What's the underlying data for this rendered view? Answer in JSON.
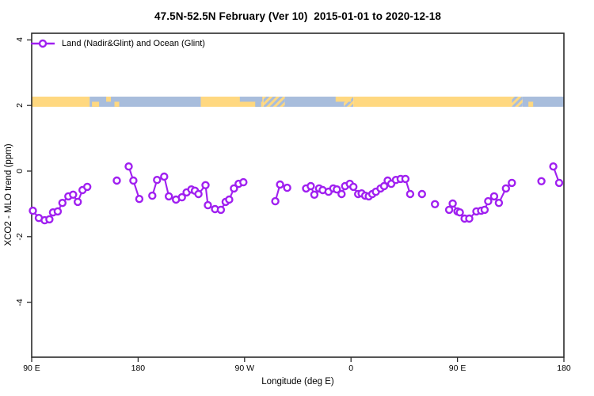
{
  "colors": {
    "series": "#A020F0",
    "land": "#FFD880",
    "ocean": "#A8BDDC",
    "frame": "#2B2B2B",
    "text": "#000000",
    "marker_fill": "#FFFFFF"
  },
  "chart_data": {
    "type": "scatter",
    "title": "47.5N-52.5N February (Ver 10)  2015-01-01 to 2020-12-18",
    "xlabel": "Longitude (deg E)",
    "ylabel": "XCO2 - MLO trend (ppm)",
    "xlim": [
      90,
      540
    ],
    "ylim": [
      -5.7,
      4.25
    ],
    "grid": false,
    "legend_position": "top-left",
    "x_ticks": [
      {
        "value": 90,
        "label": "90 E"
      },
      {
        "value": 180,
        "label": "180"
      },
      {
        "value": 270,
        "label": "90 W"
      },
      {
        "value": 360,
        "label": "0"
      },
      {
        "value": 450,
        "label": "90 E"
      },
      {
        "value": 540,
        "label": "180"
      }
    ],
    "y_ticks": [
      {
        "value": 4,
        "label": "4"
      },
      {
        "value": 2,
        "label": "2"
      },
      {
        "value": 0,
        "label": "0"
      },
      {
        "value": -2,
        "label": "-2"
      },
      {
        "value": -4,
        "label": "-4"
      }
    ],
    "series": [
      {
        "name": "Land (Nadir&Glint) and Ocean (Glint)",
        "marker": "open-circle",
        "line": "solid",
        "segments": [
          [
            [
              91,
              -1.21
            ],
            [
              96,
              -1.43
            ],
            [
              101,
              -1.5
            ],
            [
              105,
              -1.47
            ],
            [
              108,
              -1.26
            ],
            [
              112,
              -1.23
            ],
            [
              116,
              -0.97
            ],
            [
              121,
              -0.77
            ],
            [
              125,
              -0.72
            ],
            [
              129,
              -0.94
            ],
            [
              133,
              -0.58
            ],
            [
              137,
              -0.48
            ]
          ],
          [
            [
              162,
              -0.29
            ]
          ],
          [
            [
              172,
              0.14
            ],
            [
              176,
              -0.29
            ],
            [
              181,
              -0.85
            ]
          ],
          [
            [
              192,
              -0.75
            ],
            [
              196,
              -0.27
            ],
            [
              202,
              -0.17
            ],
            [
              206,
              -0.77
            ],
            [
              212,
              -0.87
            ],
            [
              217,
              -0.8
            ],
            [
              221,
              -0.65
            ],
            [
              225,
              -0.56
            ],
            [
              228,
              -0.6
            ],
            [
              231,
              -0.7
            ],
            [
              237,
              -0.43
            ],
            [
              239,
              -1.04
            ],
            [
              245,
              -1.16
            ],
            [
              250,
              -1.18
            ],
            [
              254,
              -0.94
            ],
            [
              257,
              -0.87
            ],
            [
              261,
              -0.53
            ],
            [
              265,
              -0.39
            ],
            [
              269,
              -0.34
            ]
          ],
          [
            [
              296,
              -0.92
            ],
            [
              300,
              -0.41
            ],
            [
              306,
              -0.51
            ]
          ],
          [
            [
              322,
              -0.53
            ],
            [
              326,
              -0.46
            ],
            [
              329,
              -0.72
            ],
            [
              333,
              -0.53
            ],
            [
              336,
              -0.58
            ],
            [
              341,
              -0.63
            ],
            [
              345,
              -0.53
            ],
            [
              348,
              -0.56
            ],
            [
              352,
              -0.7
            ],
            [
              355,
              -0.46
            ],
            [
              359,
              -0.39
            ],
            [
              362,
              -0.48
            ],
            [
              366,
              -0.7
            ],
            [
              369,
              -0.68
            ],
            [
              372,
              -0.75
            ],
            [
              375,
              -0.77
            ],
            [
              378,
              -0.7
            ],
            [
              381,
              -0.63
            ],
            [
              385,
              -0.53
            ],
            [
              388,
              -0.46
            ],
            [
              391,
              -0.29
            ],
            [
              394,
              -0.39
            ],
            [
              398,
              -0.27
            ],
            [
              402,
              -0.24
            ],
            [
              406,
              -0.24
            ],
            [
              410,
              -0.7
            ]
          ],
          [
            [
              420,
              -0.7
            ]
          ],
          [
            [
              431,
              -1.01
            ]
          ],
          [
            [
              443,
              -1.18
            ],
            [
              446,
              -0.99
            ],
            [
              450,
              -1.23
            ],
            [
              452,
              -1.26
            ],
            [
              456,
              -1.45
            ],
            [
              460,
              -1.45
            ],
            [
              466,
              -1.23
            ],
            [
              470,
              -1.21
            ],
            [
              473,
              -1.18
            ],
            [
              476,
              -0.92
            ],
            [
              481,
              -0.77
            ],
            [
              485,
              -0.97
            ],
            [
              491,
              -0.53
            ],
            [
              496,
              -0.36
            ]
          ],
          [
            [
              521,
              -0.31
            ]
          ],
          [
            [
              531,
              0.14
            ],
            [
              536,
              -0.36
            ]
          ]
        ]
      }
    ],
    "surface_band": {
      "description": "land/ocean map strip across 47.5N-52.5N",
      "y_range": [
        1.96,
        2.27
      ],
      "base_segments": [
        {
          "from": 90,
          "to": 139,
          "surface": "land"
        },
        {
          "from": 139,
          "to": 233,
          "surface": "ocean"
        },
        {
          "from": 233,
          "to": 286,
          "surface": "land"
        },
        {
          "from": 286,
          "to": 304,
          "surface": "mixed"
        },
        {
          "from": 304,
          "to": 354,
          "surface": "ocean"
        },
        {
          "from": 354,
          "to": 362,
          "surface": "mixed"
        },
        {
          "from": 362,
          "to": 496,
          "surface": "land"
        },
        {
          "from": 496,
          "to": 505,
          "surface": "mixed"
        },
        {
          "from": 505,
          "to": 540,
          "surface": "ocean"
        }
      ],
      "overlay_patches": [
        {
          "from": 141,
          "to": 147,
          "part": "bottom",
          "surface": "land"
        },
        {
          "from": 153,
          "to": 157,
          "part": "top",
          "surface": "land"
        },
        {
          "from": 160,
          "to": 164,
          "part": "bottom",
          "surface": "land"
        },
        {
          "from": 266,
          "to": 285,
          "part": "top",
          "surface": "ocean"
        },
        {
          "from": 279,
          "to": 284,
          "part": "bottom",
          "surface": "ocean"
        },
        {
          "from": 347,
          "to": 360,
          "part": "top",
          "surface": "land"
        },
        {
          "from": 510,
          "to": 514,
          "part": "bottom",
          "surface": "land"
        }
      ]
    }
  }
}
